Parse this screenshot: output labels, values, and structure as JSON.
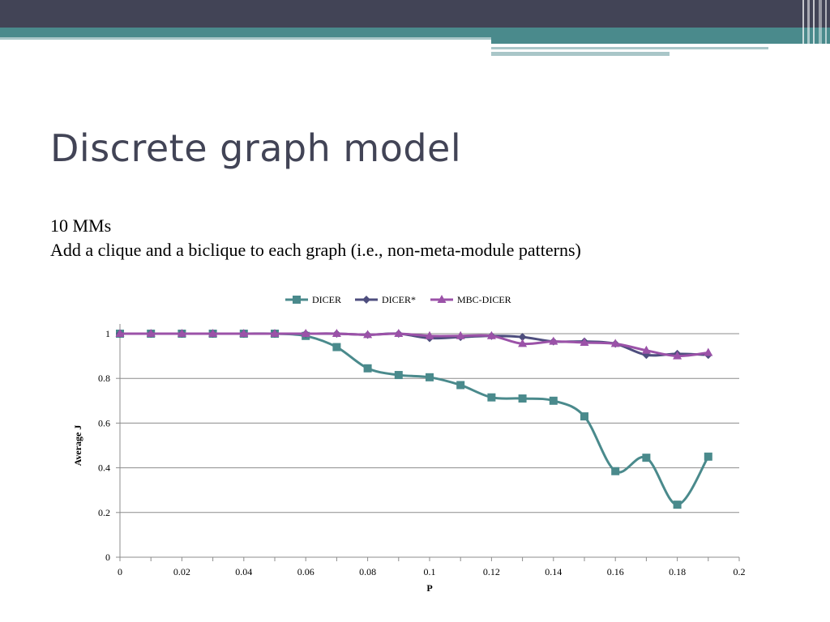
{
  "slide": {
    "title": "Discrete graph model",
    "lines": [
      "10 MMs",
      "Add a clique and a biclique to each graph (i.e., non-meta-module patterns)"
    ]
  },
  "theme": {
    "top_bar": "#424456",
    "accent": "#4A8A8C",
    "accent_light": "#A9C6C8",
    "grid": "#8C8C8C",
    "axis": "#8C8C8C"
  },
  "chart_data": {
    "type": "line",
    "title": "",
    "xlabel": "P",
    "ylabel": "Average J",
    "xlim": [
      0,
      0.2
    ],
    "ylim": [
      0,
      1
    ],
    "x_ticks": [
      "0",
      "0.02",
      "0.04",
      "0.06",
      "0.08",
      "0.1",
      "0.12",
      "0.14",
      "0.16",
      "0.18",
      "0.2"
    ],
    "y_ticks": [
      "0",
      "0.2",
      "0.4",
      "0.6",
      "0.8",
      "1"
    ],
    "grid": true,
    "legend_position": "top-center",
    "x": [
      0,
      0.01,
      0.02,
      0.03,
      0.04,
      0.05,
      0.06,
      0.07,
      0.08,
      0.09,
      0.1,
      0.11,
      0.12,
      0.13,
      0.14,
      0.15,
      0.16,
      0.17,
      0.18,
      0.19
    ],
    "series": [
      {
        "name": "DICER",
        "color": "#4A8A8C",
        "marker": "square",
        "values": [
          1,
          1,
          1,
          1,
          1,
          1,
          0.99,
          0.94,
          0.845,
          0.815,
          0.805,
          0.77,
          0.715,
          0.71,
          0.7,
          0.63,
          0.385,
          0.445,
          0.235,
          0.45
        ]
      },
      {
        "name": "DICER*",
        "color": "#4E4E7E",
        "marker": "diamond",
        "values": [
          1,
          1,
          1,
          1,
          1,
          1,
          1,
          1,
          0.995,
          1,
          0.98,
          0.985,
          0.99,
          0.985,
          0.965,
          0.965,
          0.955,
          0.905,
          0.91,
          0.905
        ]
      },
      {
        "name": "MBC-DICER",
        "color": "#9B52A8",
        "marker": "triangle",
        "values": [
          1,
          1,
          1,
          1,
          1,
          1,
          1,
          1,
          0.995,
          1,
          0.99,
          0.99,
          0.99,
          0.955,
          0.965,
          0.96,
          0.955,
          0.925,
          0.9,
          0.915
        ]
      }
    ]
  }
}
